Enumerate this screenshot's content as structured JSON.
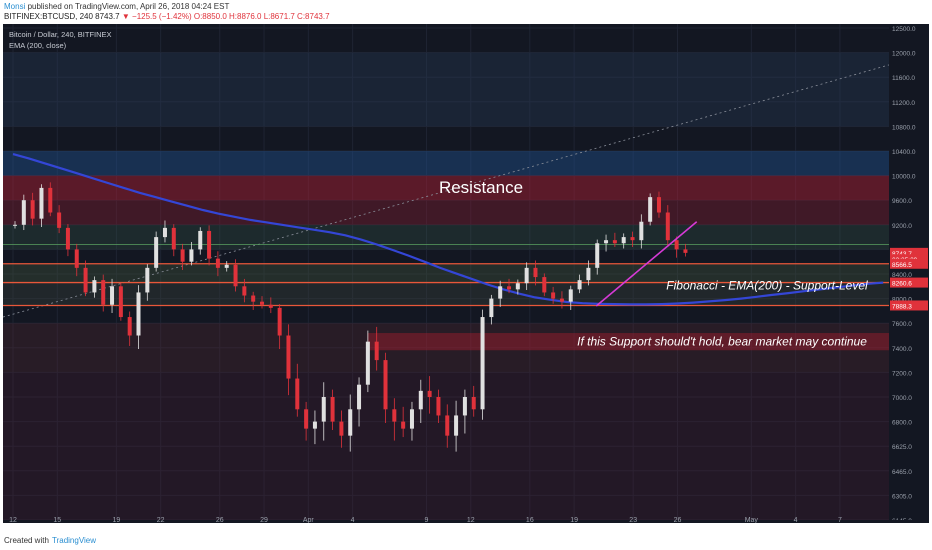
{
  "header": {
    "author": "Monsi",
    "published_text": "published on TradingView.com, April 26, 2018 04:24 EST",
    "symbol": "BITFINEX:BTCUSD, 240",
    "last": "8743.7",
    "change": "−125.5 (−1.42%)",
    "ohlc": "O:8850.0 H:8876.0 L:8671.7 C:8743.7"
  },
  "footer": {
    "created": "Created with",
    "brand": "TradingView"
  },
  "colors": {
    "background": "#131722",
    "up": "#e0e0e0",
    "down": "#e0323b",
    "ema": "#3446d6",
    "trendline": "#d63ad6",
    "level_line": "#e8573a",
    "resistance_zone": "rgba(200,30,50,0.35)",
    "support_zone": "rgba(200,30,50,0.35)"
  },
  "chart_data": {
    "type": "candlestick",
    "title": "Bitcoin / Dollar, 240, BITFINEX",
    "indicator": "EMA (200, close)",
    "ylim": [
      6145,
      12500
    ],
    "yticks": [
      12500.0,
      12000.0,
      11600.0,
      11200.0,
      10800.0,
      10400.0,
      10000.0,
      9600.0,
      9200.0,
      8800.0,
      8400.0,
      8000.0,
      7600.0,
      7400.0,
      7200.0,
      7000.0,
      6800.0,
      6625.0,
      6465.0,
      6305.0,
      6145.0
    ],
    "y_labels_text": [
      "12500.0",
      "12000.0",
      "11600.0",
      "11200.0",
      "10800.0",
      "10400.0",
      "10000.0",
      "9600.0",
      "9200.0",
      "8800.0",
      "8400.0",
      "8000.0",
      "7600.0",
      "7400.0",
      "7200.0",
      "7000.0",
      "6800.0",
      "6625.0",
      "6465.0",
      "6305.0",
      "6145.0"
    ],
    "x_ticks": [
      "12",
      "15",
      "19",
      "22",
      "26",
      "29",
      "Apr",
      "4",
      "9",
      "12",
      "16",
      "19",
      "23",
      "26",
      "May",
      "4",
      "7"
    ],
    "x_tick_day_index": [
      0,
      3,
      7,
      10,
      14,
      17,
      20,
      23,
      28,
      31,
      35,
      38,
      42,
      45,
      50,
      53,
      56
    ],
    "price_labels": [
      {
        "text": "8743.7",
        "value": 8743.7,
        "color": "#e0323b"
      },
      {
        "text": "02:35:29",
        "value": 8640,
        "color": "#e0323b"
      },
      {
        "text": "8566.5",
        "value": 8566.5,
        "color": "#e0323b"
      },
      {
        "text": "8260.6",
        "value": 8260.6,
        "color": "#e0323b"
      },
      {
        "text": "7888.3",
        "value": 7888.3,
        "color": "#e0323b"
      }
    ],
    "horizontal_levels": [
      8566.5,
      8260.6,
      7888.3
    ],
    "zones": [
      {
        "from": 9270,
        "to": 10000,
        "label": "Resistance"
      },
      {
        "from": 7380,
        "to": 7520,
        "label": "If this Support should't hold, bear market may continue"
      }
    ],
    "annotations": [
      {
        "text": "Fibonacci - EMA(200) - Support-Level",
        "value": 8150
      },
      {
        "text": "Resistance",
        "value": 9720
      }
    ],
    "closes": [
      9200,
      9600,
      9300,
      9800,
      9400,
      9150,
      8800,
      8500,
      8100,
      8300,
      7900,
      8200,
      7700,
      7500,
      8100,
      8500,
      9000,
      9150,
      8800,
      8600,
      8800,
      9100,
      8650,
      8500,
      8550,
      8200,
      8050,
      7950,
      7900,
      7850,
      7500,
      7150,
      6900,
      6750,
      6800,
      7000,
      6800,
      6700,
      6900,
      7100,
      7450,
      7300,
      6900,
      6800,
      6750,
      6900,
      7050,
      7000,
      6850,
      6700,
      6850,
      7000,
      6900,
      7700,
      8000,
      8200,
      8150,
      8250,
      8500,
      8350,
      8100,
      8000,
      7950,
      8150,
      8300,
      8500,
      8900,
      8950,
      8900,
      9000,
      8950,
      9250,
      9650,
      9400,
      8950,
      8800,
      8743.7
    ],
    "ema": [
      10350,
      10280,
      10200,
      10120,
      10040,
      9960,
      9880,
      9800,
      9720,
      9650,
      9580,
      9510,
      9440,
      9380,
      9330,
      9280,
      9240,
      9200,
      9160,
      9120,
      9080,
      9030,
      8960,
      8880,
      8790,
      8700,
      8600,
      8500,
      8410,
      8320,
      8230,
      8150,
      8080,
      8020,
      7980,
      7945,
      7925,
      7915,
      7910,
      7905,
      7905,
      7910,
      7920,
      7935,
      7955,
      7975,
      8000,
      8030,
      8060,
      8090,
      8120,
      8150,
      8180,
      8210,
      8240,
      8260
    ],
    "trendline": {
      "from": [
        7880,
        0.71
      ],
      "to": [
        9250,
        0.79
      ]
    },
    "dotted_line": {
      "from": [
        7700,
        0.0
      ],
      "to": [
        11800,
        1.0
      ]
    }
  }
}
